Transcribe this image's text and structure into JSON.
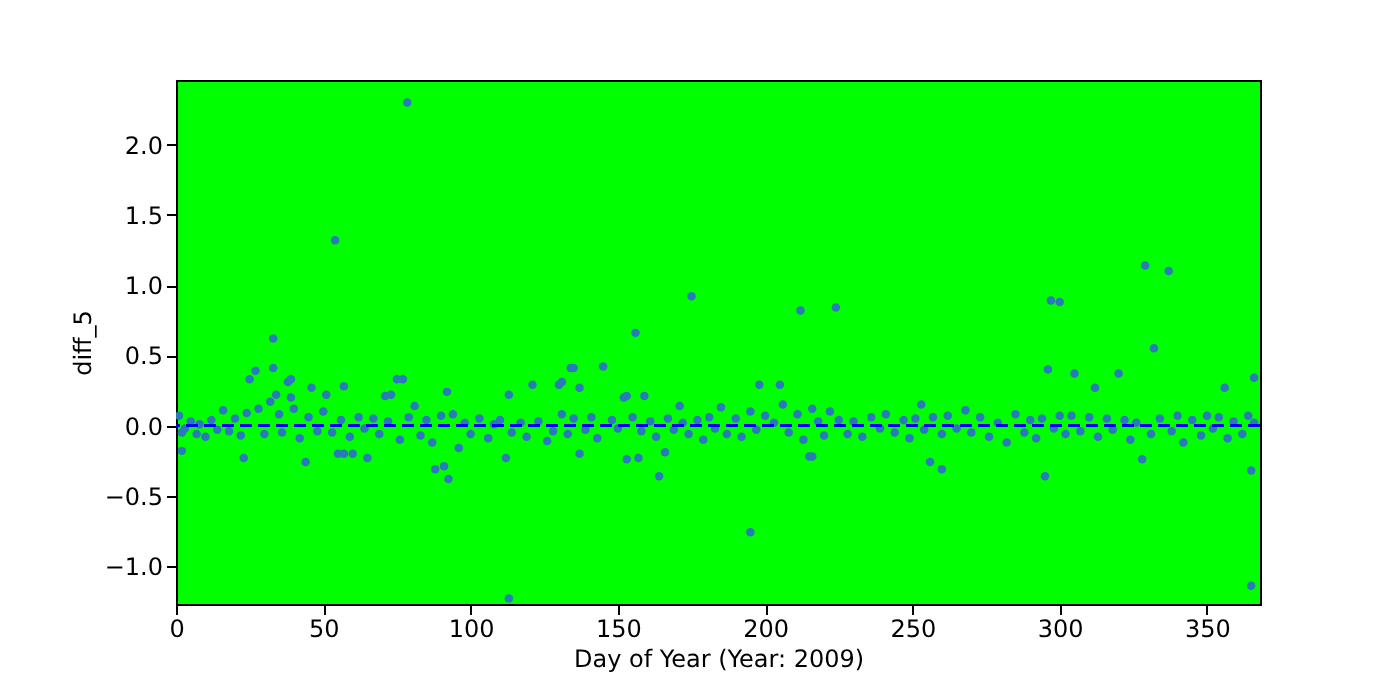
{
  "chart_data": {
    "type": "scatter",
    "xlabel": "Day of Year (Year: 2009)",
    "ylabel": "diff_5",
    "series": [
      {
        "color": "#2a7ab9",
        "x": [
          1,
          2,
          3,
          5,
          7,
          8,
          10,
          12,
          14,
          16,
          18,
          20,
          22,
          24,
          28,
          30,
          32,
          34,
          35,
          36,
          39,
          40,
          42,
          45,
          48,
          50,
          53,
          56,
          59,
          62,
          64,
          67,
          69,
          72,
          76,
          79,
          81,
          83,
          85,
          87,
          90,
          94,
          96,
          98,
          100,
          103,
          106,
          108,
          110,
          114,
          117,
          119,
          123,
          126,
          128,
          131,
          133,
          135,
          139,
          141,
          143,
          148,
          150,
          155,
          158,
          161,
          163,
          167,
          169,
          172,
          174,
          177,
          179,
          181,
          183,
          185,
          187,
          190,
          192,
          195,
          197,
          200,
          203,
          206,
          208,
          211,
          213,
          216,
          218,
          220,
          222,
          225,
          228,
          230,
          233,
          236,
          239,
          241,
          244,
          247,
          249,
          251,
          254,
          257,
          260,
          262,
          265,
          268,
          270,
          273,
          276,
          279,
          282,
          285,
          288,
          290,
          292,
          294,
          298,
          300,
          302,
          304,
          307,
          310,
          313,
          316,
          318,
          322,
          324,
          326,
          331,
          334,
          338,
          340,
          342,
          345,
          348,
          350,
          352,
          354,
          357,
          359,
          362,
          364,
          366,
          78.5,
          54,
          33,
          175,
          156,
          113,
          135,
          27,
          33,
          164,
          92.5,
          212,
          224,
          297,
          300,
          329,
          337,
          332,
          296,
          305,
          320,
          312,
          366,
          356,
          195,
          365,
          365,
          295,
          260,
          256,
          328,
          198,
          205,
          253,
          215,
          216,
          2,
          23,
          44,
          55,
          57,
          60,
          65,
          88,
          91,
          112,
          137,
          153,
          157,
          166,
          25,
          38,
          39,
          46,
          51,
          57,
          71,
          73,
          75,
          77,
          92,
          113,
          121,
          130,
          131,
          134,
          137,
          145,
          152,
          153,
          159,
          171
        ],
        "values": [
          0.07,
          -0.05,
          -0.02,
          0.03,
          -0.06,
          0.01,
          -0.08,
          0.04,
          -0.03,
          0.11,
          -0.04,
          0.05,
          -0.07,
          0.09,
          0.12,
          -0.06,
          0.17,
          0.22,
          0.08,
          -0.05,
          0.2,
          0.12,
          -0.09,
          0.06,
          -0.04,
          0.1,
          -0.05,
          0.04,
          -0.08,
          0.06,
          -0.02,
          0.05,
          -0.06,
          0.03,
          -0.1,
          0.06,
          0.14,
          -0.07,
          0.04,
          -0.12,
          0.07,
          0.08,
          -0.16,
          0.02,
          -0.06,
          0.05,
          -0.09,
          0.01,
          0.04,
          -0.05,
          0.02,
          -0.08,
          0.03,
          -0.11,
          -0.04,
          0.08,
          -0.06,
          0.05,
          -0.03,
          0.06,
          -0.09,
          0.04,
          -0.02,
          0.06,
          -0.04,
          0.03,
          -0.08,
          0.05,
          -0.03,
          0.02,
          -0.06,
          0.04,
          -0.1,
          0.06,
          -0.02,
          0.13,
          -0.06,
          0.05,
          -0.08,
          0.1,
          -0.03,
          0.07,
          0.02,
          0.15,
          -0.05,
          0.08,
          -0.1,
          0.12,
          0.03,
          -0.07,
          0.1,
          0.04,
          -0.06,
          0.03,
          -0.08,
          0.06,
          -0.02,
          0.08,
          -0.05,
          0.04,
          -0.09,
          0.05,
          -0.03,
          0.06,
          -0.06,
          0.07,
          -0.02,
          0.11,
          -0.05,
          0.06,
          -0.08,
          0.02,
          -0.12,
          0.08,
          -0.05,
          0.04,
          -0.09,
          0.05,
          -0.02,
          0.07,
          -0.06,
          0.07,
          -0.04,
          0.06,
          -0.08,
          0.05,
          -0.03,
          0.04,
          -0.1,
          0.02,
          -0.06,
          0.05,
          -0.04,
          0.07,
          -0.12,
          0.04,
          -0.07,
          0.07,
          -0.02,
          0.06,
          -0.09,
          0.03,
          -0.06,
          0.07,
          0.02,
          2.3,
          1.32,
          0.62,
          0.92,
          0.66,
          -1.23,
          0.41,
          0.39,
          0.41,
          -0.36,
          -0.38,
          0.82,
          0.84,
          0.89,
          0.88,
          1.14,
          1.1,
          0.55,
          0.4,
          0.37,
          0.37,
          0.27,
          0.34,
          0.27,
          -0.76,
          -1.14,
          -0.32,
          -0.36,
          -0.31,
          -0.26,
          -0.24,
          0.29,
          0.29,
          0.15,
          -0.22,
          -0.22,
          -0.18,
          -0.23,
          -0.26,
          -0.2,
          -0.2,
          -0.2,
          -0.23,
          -0.31,
          -0.29,
          -0.23,
          -0.2,
          -0.24,
          -0.23,
          -0.19,
          0.33,
          0.31,
          0.33,
          0.27,
          0.22,
          0.28,
          0.21,
          0.22,
          0.33,
          0.33,
          0.24,
          0.22,
          0.29,
          0.29,
          0.31,
          0.41,
          0.27,
          0.42,
          0.2,
          0.21,
          0.21,
          0.14
        ]
      }
    ],
    "xlim": [
      0,
      368
    ],
    "ylim": [
      -1.27,
      2.46
    ],
    "xticks": [
      0,
      50,
      100,
      150,
      200,
      250,
      300,
      350
    ],
    "yticks": [
      {
        "value": -1.0,
        "label": "−1.0"
      },
      {
        "value": -0.5,
        "label": "−0.5"
      },
      {
        "value": 0.0,
        "label": "0.0"
      },
      {
        "value": 0.5,
        "label": "0.5"
      },
      {
        "value": 1.0,
        "label": "1.0"
      },
      {
        "value": 1.5,
        "label": "1.5"
      },
      {
        "value": 2.0,
        "label": "2.0"
      }
    ],
    "ref_lines": [
      {
        "axis": "y",
        "value": 0.0,
        "color": "#0000ff",
        "line_style": "dashed"
      }
    ],
    "marker": "circle",
    "grid": false
  }
}
